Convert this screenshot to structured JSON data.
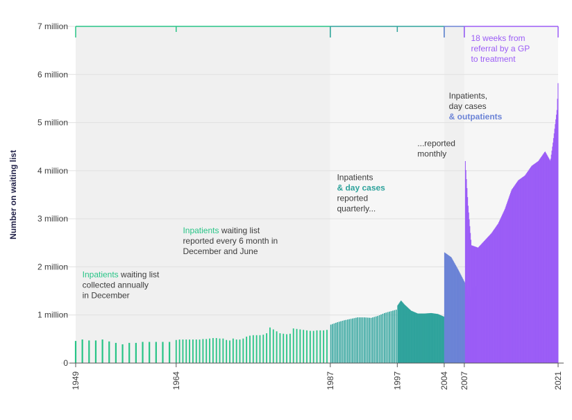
{
  "chart_data": {
    "type": "bar",
    "ylabel": "Number on waiting list",
    "ylim": [
      0,
      7000000
    ],
    "y_ticks": [
      {
        "value": 0,
        "label": "0"
      },
      {
        "value": 1000000,
        "label": "1 million"
      },
      {
        "value": 2000000,
        "label": "2 million"
      },
      {
        "value": 3000000,
        "label": "3 million"
      },
      {
        "value": 4000000,
        "label": "4 million"
      },
      {
        "value": 5000000,
        "label": "5 million"
      },
      {
        "value": 6000000,
        "label": "6 million"
      },
      {
        "value": 7000000,
        "label": "7 million"
      }
    ],
    "x_ticks": [
      "1949",
      "1964",
      "1987",
      "1997",
      "2004",
      "2007",
      "2021"
    ],
    "xlim": [
      1949,
      2021
    ],
    "grid": true,
    "colors": {
      "inpatients": "#27c486",
      "day_cases": "#2fa39c",
      "outpatients": "#6b83d6",
      "rtt": "#9b5cf6",
      "grid": "#e0e0e0",
      "text": "#3c3c3c",
      "ylabel": "#23234a"
    },
    "bands": [
      {
        "start": 1949,
        "end": 1987,
        "fill": "#f0f0f0"
      },
      {
        "start": 1987,
        "end": 2004,
        "fill": "#f6f6f6"
      },
      {
        "start": 2004,
        "end": 2007,
        "fill": "#f0f0f0"
      },
      {
        "start": 2007,
        "end": 2021,
        "fill": "#f6f6f6"
      }
    ],
    "brackets": [
      {
        "start": 1949,
        "end": 1987,
        "color": "#27c486",
        "inner_ticks": [
          1964
        ]
      },
      {
        "start": 1987,
        "end": 2004,
        "color": "#2fa39c",
        "inner_ticks": [
          1997
        ]
      },
      {
        "start": 2004,
        "end": 2007,
        "color": "#6b83d6",
        "inner_ticks": []
      },
      {
        "start": 2007,
        "end": 2021,
        "color": "#9b5cf6",
        "inner_ticks": []
      }
    ],
    "series": [
      {
        "name": "Inpatients waiting list collected annually in December",
        "style": "annual",
        "color": "#27c486",
        "points": [
          [
            1949,
            460000
          ],
          [
            1950,
            490000
          ],
          [
            1951,
            470000
          ],
          [
            1952,
            470000
          ],
          [
            1953,
            490000
          ],
          [
            1954,
            450000
          ],
          [
            1955,
            420000
          ],
          [
            1956,
            390000
          ],
          [
            1957,
            420000
          ],
          [
            1958,
            420000
          ],
          [
            1959,
            440000
          ],
          [
            1960,
            440000
          ],
          [
            1961,
            440000
          ],
          [
            1962,
            440000
          ],
          [
            1963,
            440000
          ]
        ]
      },
      {
        "name": "Inpatients waiting list reported every 6 month in December and June",
        "style": "semiannual",
        "color": "#27c486",
        "points": [
          [
            1964.0,
            480000
          ],
          [
            1964.5,
            490000
          ],
          [
            1965.0,
            490000
          ],
          [
            1965.5,
            490000
          ],
          [
            1966.0,
            490000
          ],
          [
            1966.5,
            490000
          ],
          [
            1967.0,
            490000
          ],
          [
            1967.5,
            490000
          ],
          [
            1968.0,
            500000
          ],
          [
            1968.5,
            500000
          ],
          [
            1969.0,
            510000
          ],
          [
            1969.5,
            520000
          ],
          [
            1970.0,
            520000
          ],
          [
            1970.5,
            510000
          ],
          [
            1971.0,
            510000
          ],
          [
            1971.5,
            480000
          ],
          [
            1972.0,
            470000
          ],
          [
            1972.5,
            510000
          ],
          [
            1973.0,
            490000
          ],
          [
            1973.5,
            490000
          ],
          [
            1974.0,
            510000
          ],
          [
            1974.5,
            550000
          ],
          [
            1975.0,
            570000
          ],
          [
            1975.5,
            580000
          ],
          [
            1976.0,
            580000
          ],
          [
            1976.5,
            580000
          ],
          [
            1977.0,
            590000
          ],
          [
            1977.5,
            620000
          ],
          [
            1978.0,
            740000
          ],
          [
            1978.5,
            700000
          ],
          [
            1979.0,
            660000
          ],
          [
            1979.5,
            620000
          ],
          [
            1980.0,
            610000
          ],
          [
            1980.5,
            600000
          ],
          [
            1981.0,
            610000
          ],
          [
            1981.5,
            720000
          ],
          [
            1982.0,
            710000
          ],
          [
            1982.5,
            700000
          ],
          [
            1983.0,
            690000
          ],
          [
            1983.5,
            680000
          ],
          [
            1984.0,
            670000
          ],
          [
            1984.5,
            670000
          ],
          [
            1985.0,
            680000
          ],
          [
            1985.5,
            680000
          ],
          [
            1986.0,
            680000
          ],
          [
            1986.5,
            690000
          ]
        ]
      },
      {
        "name": "Inpatients & day cases reported quarterly...",
        "style": "quarterly",
        "color": "#2fa39c",
        "points": [
          [
            1987,
            800000
          ],
          [
            1988,
            850000
          ],
          [
            1989,
            890000
          ],
          [
            1990,
            920000
          ],
          [
            1991,
            950000
          ],
          [
            1992,
            950000
          ],
          [
            1993,
            940000
          ],
          [
            1994,
            980000
          ],
          [
            1995,
            1040000
          ],
          [
            1996,
            1080000
          ],
          [
            1997,
            1120000
          ]
        ]
      },
      {
        "name": "...reported monthly",
        "style": "monthly",
        "color": "#2fa39c",
        "points": [
          [
            1997,
            1200000
          ],
          [
            1997.5,
            1300000
          ],
          [
            1998,
            1220000
          ],
          [
            1999,
            1090000
          ],
          [
            2000,
            1030000
          ],
          [
            2001,
            1030000
          ],
          [
            2002,
            1040000
          ],
          [
            2003,
            1020000
          ],
          [
            2004,
            960000
          ]
        ]
      },
      {
        "name": "Inpatients, day cases & outpatients",
        "style": "monthly",
        "color": "#6b83d6",
        "points": [
          [
            2004,
            2300000
          ],
          [
            2005,
            2200000
          ],
          [
            2006,
            1950000
          ],
          [
            2007,
            1680000
          ],
          [
            2007.6,
            1380000
          ],
          [
            2008,
            1400000
          ],
          [
            2008.2,
            1560000
          ],
          [
            2008.7,
            1600000
          ]
        ]
      },
      {
        "name": "18 weeks from referral by a GP to treatment",
        "style": "monthly",
        "color": "#9b5cf6",
        "points": [
          [
            2007.1,
            4200000
          ],
          [
            2007.5,
            3300000
          ],
          [
            2008,
            2450000
          ],
          [
            2009,
            2400000
          ],
          [
            2010,
            2550000
          ],
          [
            2011,
            2700000
          ],
          [
            2012,
            2900000
          ],
          [
            2013,
            3200000
          ],
          [
            2014,
            3600000
          ],
          [
            2015,
            3800000
          ],
          [
            2016,
            3900000
          ],
          [
            2017,
            4100000
          ],
          [
            2018,
            4200000
          ],
          [
            2019,
            4400000
          ],
          [
            2019.8,
            4200000
          ],
          [
            2020.2,
            4600000
          ],
          [
            2020.8,
            5300000
          ],
          [
            2021,
            6080000
          ]
        ]
      }
    ],
    "annotations": [
      {
        "x": 1950,
        "y": 1780000,
        "lines": [
          [
            {
              "text": "Inpatients",
              "color": "#27c486"
            },
            {
              "text": " waiting list",
              "color": "#3c3c3c"
            }
          ],
          [
            {
              "text": "collected annually",
              "color": "#3c3c3c"
            }
          ],
          [
            {
              "text": "in December",
              "color": "#3c3c3c"
            }
          ]
        ]
      },
      {
        "x": 1965,
        "y": 2700000,
        "lines": [
          [
            {
              "text": "Inpatients",
              "color": "#27c486"
            },
            {
              "text": " waiting list",
              "color": "#3c3c3c"
            }
          ],
          [
            {
              "text": "reported every 6 month in",
              "color": "#3c3c3c"
            }
          ],
          [
            {
              "text": "December and June",
              "color": "#3c3c3c"
            }
          ]
        ]
      },
      {
        "x": 1988,
        "y": 3800000,
        "lines": [
          [
            {
              "text": "Inpatients",
              "color": "#3c3c3c"
            }
          ],
          [
            {
              "text": "& day cases",
              "color": "#2fa39c",
              "bold": true
            }
          ],
          [
            {
              "text": "reported",
              "color": "#3c3c3c"
            }
          ],
          [
            {
              "text": "quarterly...",
              "color": "#3c3c3c"
            }
          ]
        ]
      },
      {
        "x": 2000,
        "y": 4510000,
        "lines": [
          [
            {
              "text": "...reported",
              "color": "#3c3c3c"
            }
          ],
          [
            {
              "text": "monthly",
              "color": "#3c3c3c"
            }
          ]
        ]
      },
      {
        "x": 2004.7,
        "y": 5500000,
        "lines": [
          [
            {
              "text": "Inpatients,",
              "color": "#3c3c3c"
            }
          ],
          [
            {
              "text": "day cases",
              "color": "#3c3c3c"
            }
          ],
          [
            {
              "text": "& outpatients",
              "color": "#6b83d6",
              "bold": true
            }
          ]
        ]
      },
      {
        "x": 2008,
        "y": 6700000,
        "lines": [
          [
            {
              "text": "18 weeks from",
              "color": "#9b5cf6"
            }
          ],
          [
            {
              "text": "referral by a GP",
              "color": "#9b5cf6"
            }
          ],
          [
            {
              "text": "to treatment",
              "color": "#9b5cf6"
            }
          ]
        ]
      }
    ]
  }
}
